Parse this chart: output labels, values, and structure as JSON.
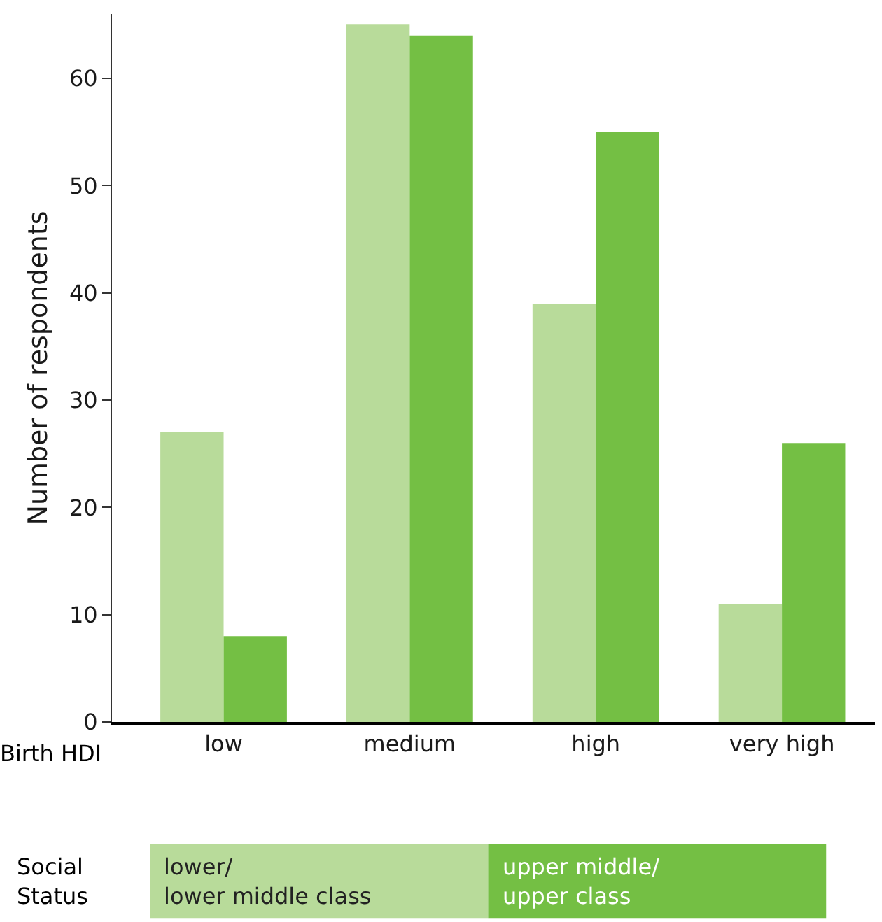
{
  "chart_data": {
    "type": "bar",
    "ylabel": "Number of respondents",
    "xlabel": "Birth HDI",
    "legend_title": "Social\nStatus",
    "categories": [
      "low",
      "medium",
      "high",
      "very high"
    ],
    "series": [
      {
        "name": "lower/\nlower middle class",
        "color": "#b8db9a",
        "values": [
          27,
          65,
          39,
          11
        ]
      },
      {
        "name": "upper middle/\nupper class",
        "color": "#74bf44",
        "values": [
          8,
          64,
          55,
          26
        ]
      }
    ],
    "ylim": [
      0,
      66
    ],
    "yticks": [
      0,
      10,
      20,
      30,
      40,
      50,
      60
    ],
    "grid": false,
    "legend": "bottom"
  }
}
